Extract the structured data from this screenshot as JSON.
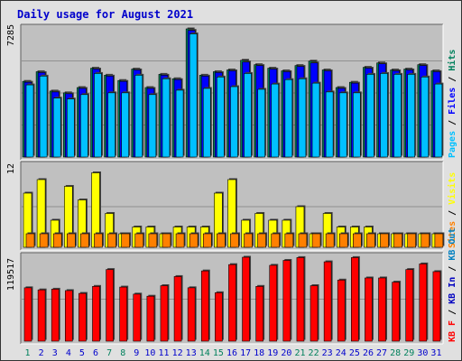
{
  "title": "Daily usage for August 2021",
  "colors": {
    "hits": "#00805c",
    "files": "#0000ff",
    "pages": "#00c0ff",
    "visits": "#ffff00",
    "sites": "#ff8000",
    "kbytes": "#ff0000",
    "kb_out": "#0080c0",
    "kb_in": "#0000c0",
    "plot_bg": "#c0c0c0",
    "frame_bg": "#e0e0e0",
    "weekend_label": "#00805c",
    "weekday_label": "#0000cc"
  },
  "chart_data": [
    {
      "type": "bar",
      "title": "Daily usage for August 2021",
      "ytick_label": "7285",
      "ylim": [
        0,
        7285
      ],
      "legend": [
        "Pages",
        "Files",
        "Hits"
      ],
      "categories": [
        "1",
        "2",
        "3",
        "4",
        "5",
        "6",
        "7",
        "8",
        "9",
        "10",
        "11",
        "12",
        "13",
        "14",
        "15",
        "16",
        "17",
        "18",
        "19",
        "20",
        "21",
        "22",
        "23",
        "24",
        "25",
        "26",
        "27",
        "28",
        "29",
        "30",
        "31"
      ],
      "series": [
        {
          "name": "Hits",
          "values": [
            4300,
            4850,
            3750,
            3650,
            3950,
            5050,
            4650,
            4350,
            5000,
            3950,
            4700,
            4450,
            7285,
            4650,
            4850,
            4950,
            5500,
            5250,
            5050,
            4900,
            5200,
            5450,
            4950,
            3950,
            4250,
            5100,
            5350,
            4950,
            5000,
            5250,
            4900
          ]
        },
        {
          "name": "Files",
          "values": [
            4250,
            4800,
            3700,
            3600,
            3900,
            5000,
            4600,
            4300,
            4950,
            3900,
            4650,
            4400,
            7200,
            4600,
            4800,
            4900,
            5400,
            5200,
            5000,
            4850,
            5150,
            5350,
            4900,
            3900,
            4200,
            5050,
            5300,
            4900,
            4950,
            5200,
            4850
          ]
        },
        {
          "name": "Pages",
          "values": [
            4100,
            4600,
            3350,
            3300,
            3550,
            4750,
            3650,
            3650,
            4650,
            3550,
            4450,
            3800,
            7000,
            3900,
            4550,
            4000,
            4750,
            3850,
            4150,
            4400,
            4450,
            4200,
            3700,
            3650,
            3650,
            4700,
            4750,
            4700,
            4700,
            4550,
            4150
          ]
        }
      ]
    },
    {
      "type": "bar",
      "ytick_label": "12",
      "ylim": [
        0,
        12
      ],
      "legend": [
        "Sites",
        "Visits"
      ],
      "categories": [
        "1",
        "2",
        "3",
        "4",
        "5",
        "6",
        "7",
        "8",
        "9",
        "10",
        "11",
        "12",
        "13",
        "14",
        "15",
        "16",
        "17",
        "18",
        "19",
        "20",
        "21",
        "22",
        "23",
        "24",
        "25",
        "26",
        "27",
        "28",
        "29",
        "30",
        "31"
      ],
      "series": [
        {
          "name": "Visits",
          "values": [
            8,
            10,
            4,
            9,
            7,
            11,
            5,
            2,
            3,
            3,
            2,
            3,
            3,
            3,
            8,
            10,
            4,
            5,
            4,
            4,
            6,
            2,
            5,
            3,
            3,
            3,
            2,
            2,
            2,
            2,
            2
          ]
        },
        {
          "name": "Sites",
          "values": [
            2,
            2,
            2,
            2,
            2,
            2,
            2,
            2,
            2,
            2,
            2,
            2,
            2,
            2,
            2,
            2,
            2,
            2,
            2,
            2,
            2,
            2,
            2,
            2,
            2,
            2,
            2,
            2,
            2,
            2,
            2
          ]
        }
      ]
    },
    {
      "type": "bar",
      "ytick_label": "119517",
      "ylim": [
        0,
        119517
      ],
      "legend": [
        "KB F",
        "KB In",
        "KB Out"
      ],
      "categories": [
        "1",
        "2",
        "3",
        "4",
        "5",
        "6",
        "7",
        "8",
        "9",
        "10",
        "11",
        "12",
        "13",
        "14",
        "15",
        "16",
        "17",
        "18",
        "19",
        "20",
        "21",
        "22",
        "23",
        "24",
        "25",
        "26",
        "27",
        "28",
        "29",
        "30",
        "31"
      ],
      "weekend_days": [
        1,
        7,
        8,
        14,
        15,
        21,
        22,
        28,
        29
      ],
      "series": [
        {
          "name": "KB F",
          "values": [
            76000,
            73000,
            74000,
            72000,
            68000,
            78000,
            102000,
            77000,
            67000,
            64000,
            79000,
            92000,
            76000,
            100000,
            69000,
            109000,
            119517,
            78000,
            108000,
            115000,
            119000,
            79000,
            113000,
            87000,
            119000,
            90000,
            90000,
            84000,
            102000,
            110000,
            99000
          ]
        }
      ]
    }
  ]
}
